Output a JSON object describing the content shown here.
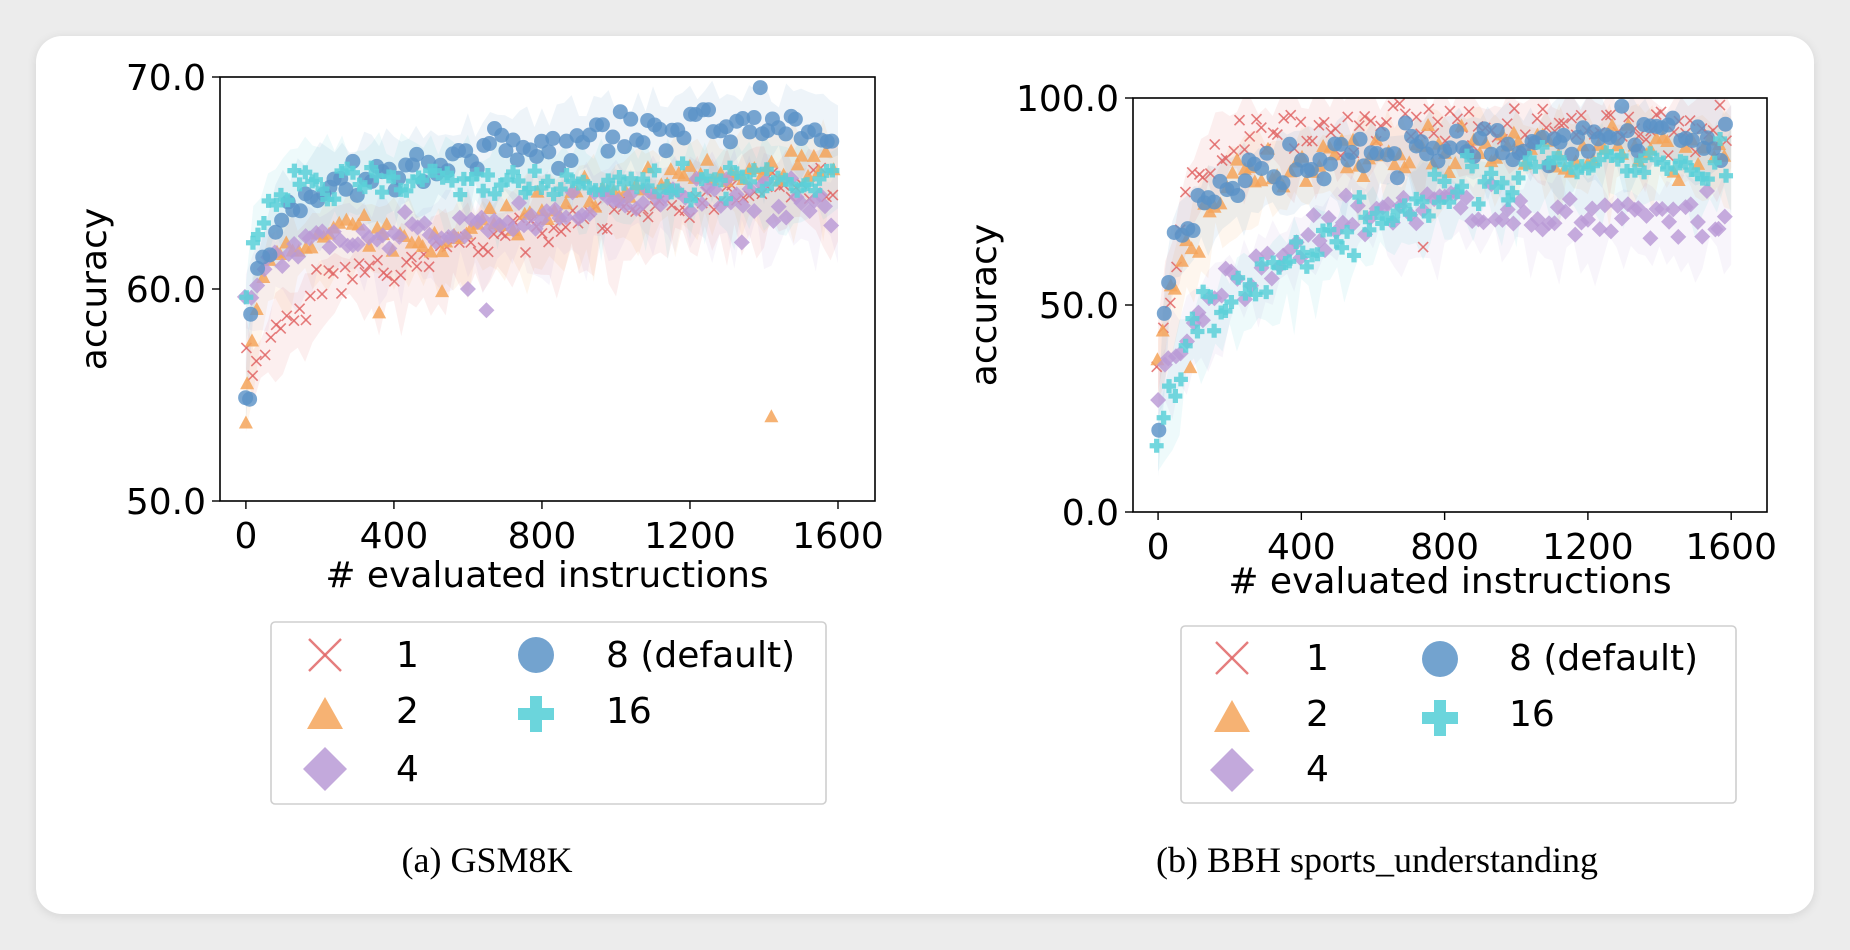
{
  "legend_items": [
    {
      "label": "1",
      "marker": "x",
      "color": "#e06666"
    },
    {
      "label": "2",
      "marker": "triangle",
      "color": "#f5a55a"
    },
    {
      "label": "4",
      "marker": "diamond",
      "color": "#b99ad6"
    },
    {
      "label": "8 (default)",
      "marker": "circle",
      "color": "#5b93c7"
    },
    {
      "label": "16",
      "marker": "plus",
      "color": "#5bd0d8"
    }
  ],
  "chart_data": [
    {
      "type": "scatter",
      "caption": "(a) GSM8K",
      "title": "",
      "xlabel": "# evaluated instructions",
      "ylabel": "accuracy",
      "xlim": [
        -70,
        1700
      ],
      "ylim": [
        50,
        70
      ],
      "xticks": [
        0,
        400,
        800,
        1200,
        1600
      ],
      "xtick_labels": [
        "0",
        "400",
        "800",
        "1200",
        "1600"
      ],
      "yticks": [
        50,
        60,
        70
      ],
      "ytick_labels": [
        "50.0",
        "60.0",
        "70.0"
      ],
      "series": [
        {
          "name": "1",
          "marker": "x",
          "color": "#e06666",
          "trend": [
            [
              0,
              57.5
            ],
            [
              20,
              56
            ],
            [
              60,
              57.5
            ],
            [
              150,
              59
            ],
            [
              250,
              60.5
            ],
            [
              400,
              61
            ],
            [
              500,
              61.5
            ],
            [
              700,
              62.5
            ],
            [
              1000,
              63.5
            ],
            [
              1300,
              64.5
            ],
            [
              1600,
              65
            ]
          ]
        },
        {
          "name": "2",
          "marker": "triangle",
          "color": "#f5a55a",
          "trend": [
            [
              0,
              55
            ],
            [
              20,
              58.5
            ],
            [
              60,
              61
            ],
            [
              150,
              62
            ],
            [
              300,
              63
            ],
            [
              500,
              62
            ],
            [
              800,
              63.5
            ],
            [
              1100,
              65
            ],
            [
              1300,
              65.5
            ],
            [
              1600,
              66
            ]
          ],
          "outliers": [
            [
              0,
              53.7
            ],
            [
              360,
              58.9
            ],
            [
              530,
              59.9
            ],
            [
              1420,
              54
            ]
          ]
        },
        {
          "name": "4",
          "marker": "diamond",
          "color": "#b99ad6",
          "trend": [
            [
              0,
              59.5
            ],
            [
              30,
              60.5
            ],
            [
              100,
              61.5
            ],
            [
              200,
              62.5
            ],
            [
              400,
              62.5
            ],
            [
              600,
              62.7
            ],
            [
              800,
              63.5
            ],
            [
              1100,
              64.5
            ],
            [
              1300,
              64.5
            ],
            [
              1600,
              64
            ]
          ],
          "outliers": [
            [
              600,
              60
            ],
            [
              650,
              59
            ],
            [
              1340,
              62.2
            ]
          ]
        },
        {
          "name": "8 (default)",
          "marker": "circle",
          "color": "#5b93c7",
          "trend": [
            [
              0,
              55.5
            ],
            [
              20,
              60
            ],
            [
              60,
              62.5
            ],
            [
              120,
              64
            ],
            [
              200,
              65
            ],
            [
              400,
              65.5
            ],
            [
              600,
              66.2
            ],
            [
              800,
              66.8
            ],
            [
              1000,
              67.3
            ],
            [
              1200,
              67.7
            ],
            [
              1600,
              67.8
            ]
          ],
          "outliers": [
            [
              10,
              54.8
            ],
            [
              1390,
              69.5
            ]
          ]
        },
        {
          "name": "16",
          "marker": "plus",
          "color": "#5bd0d8",
          "trend": [
            [
              0,
              59
            ],
            [
              20,
              62
            ],
            [
              60,
              64
            ],
            [
              150,
              65
            ],
            [
              300,
              65.3
            ],
            [
              600,
              65.2
            ],
            [
              900,
              65
            ],
            [
              1200,
              65
            ],
            [
              1600,
              65.3
            ]
          ]
        }
      ]
    },
    {
      "type": "scatter",
      "caption": "(b) BBH sports_understanding",
      "title": "",
      "xlabel": "# evaluated instructions",
      "ylabel": "accuracy",
      "xlim": [
        -70,
        1700
      ],
      "ylim": [
        0,
        100
      ],
      "xticks": [
        0,
        400,
        800,
        1200,
        1600
      ],
      "xtick_labels": [
        "0",
        "400",
        "800",
        "1200",
        "1600"
      ],
      "yticks": [
        0,
        50,
        100
      ],
      "ytick_labels": [
        "0.0",
        "50.0",
        "100.0"
      ],
      "series": [
        {
          "name": "1",
          "marker": "x",
          "color": "#e06666",
          "trend": [
            [
              0,
              40
            ],
            [
              30,
              55
            ],
            [
              80,
              75
            ],
            [
              130,
              86
            ],
            [
              200,
              91
            ],
            [
              400,
              92
            ],
            [
              700,
              93
            ],
            [
              1000,
              93
            ],
            [
              1300,
              93
            ],
            [
              1600,
              92
            ]
          ],
          "outliers": [
            [
              740,
              64
            ]
          ]
        },
        {
          "name": "2",
          "marker": "triangle",
          "color": "#f5a55a",
          "trend": [
            [
              0,
              35
            ],
            [
              30,
              50
            ],
            [
              80,
              62
            ],
            [
              150,
              75
            ],
            [
              250,
              82
            ],
            [
              400,
              84
            ],
            [
              600,
              86
            ],
            [
              900,
              88
            ],
            [
              1200,
              88
            ],
            [
              1600,
              87
            ]
          ],
          "outliers": [
            [
              90,
              35
            ]
          ]
        },
        {
          "name": "4",
          "marker": "diamond",
          "color": "#b99ad6",
          "trend": [
            [
              0,
              30
            ],
            [
              40,
              38
            ],
            [
              100,
              45
            ],
            [
              200,
              54
            ],
            [
              300,
              60
            ],
            [
              400,
              66
            ],
            [
              500,
              71
            ],
            [
              600,
              74
            ],
            [
              800,
              74
            ],
            [
              1100,
              72
            ],
            [
              1300,
              71
            ],
            [
              1600,
              71
            ]
          ]
        },
        {
          "name": "8 (default)",
          "marker": "circle",
          "color": "#5b93c7",
          "trend": [
            [
              0,
              18
            ],
            [
              15,
              45
            ],
            [
              40,
              64
            ],
            [
              100,
              72
            ],
            [
              200,
              79
            ],
            [
              400,
              84
            ],
            [
              600,
              86
            ],
            [
              800,
              88
            ],
            [
              1000,
              89
            ],
            [
              1200,
              91
            ],
            [
              1600,
              92
            ]
          ]
        },
        {
          "name": "16",
          "marker": "plus",
          "color": "#5bd0d8",
          "trend": [
            [
              0,
              17
            ],
            [
              30,
              27
            ],
            [
              80,
              42
            ],
            [
              150,
              47
            ],
            [
              250,
              54
            ],
            [
              400,
              62
            ],
            [
              600,
              70
            ],
            [
              800,
              78
            ],
            [
              1000,
              82
            ],
            [
              1200,
              84
            ],
            [
              1600,
              84
            ]
          ]
        }
      ]
    }
  ]
}
